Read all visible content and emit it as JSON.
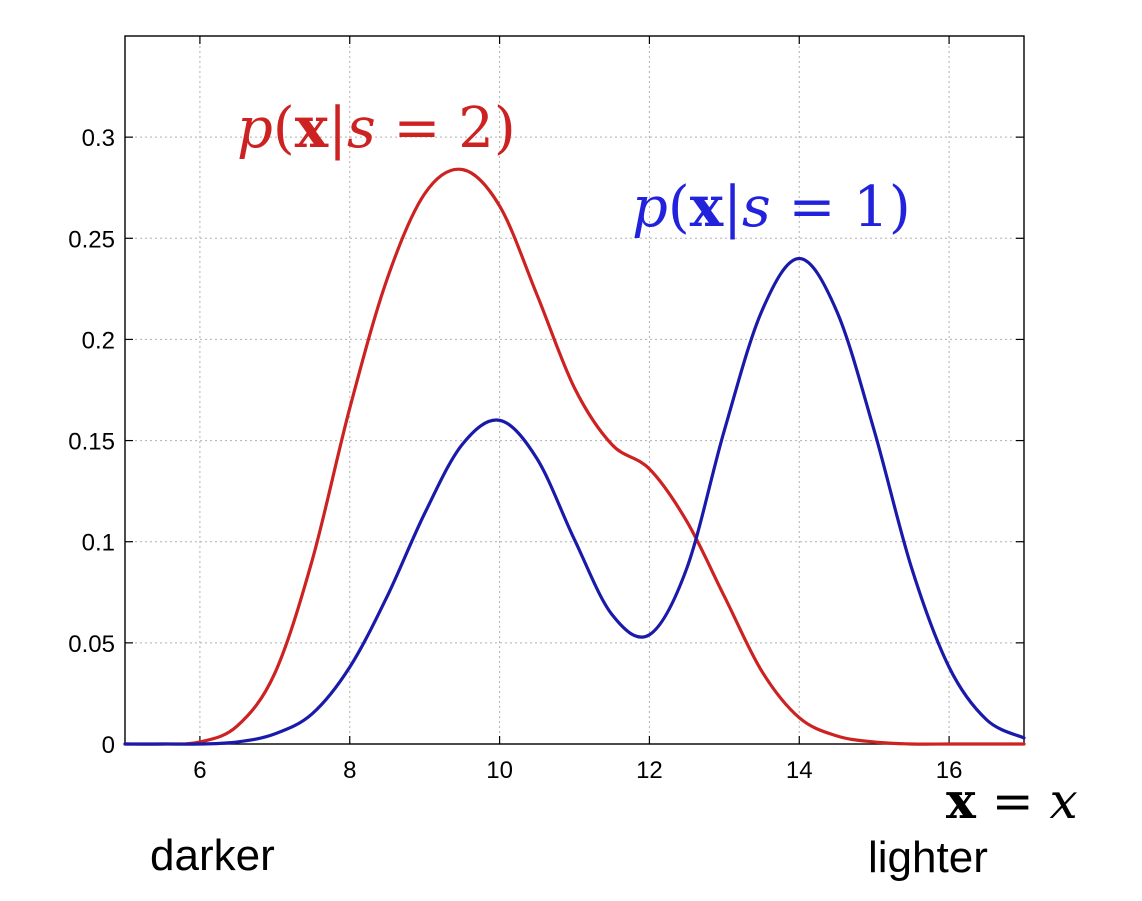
{
  "chart_data": {
    "type": "line",
    "xlim": [
      5,
      17
    ],
    "ylim": [
      0,
      0.35
    ],
    "grid": true,
    "x_ticks": [
      6,
      8,
      10,
      12,
      14,
      16
    ],
    "y_ticks": [
      0,
      0.05,
      0.1,
      0.15,
      0.2,
      0.25,
      0.3
    ],
    "x_tick_labels": [
      "6",
      "8",
      "10",
      "12",
      "14",
      "16"
    ],
    "y_tick_labels": [
      "0",
      "0.05",
      "0.1",
      "0.15",
      "0.2",
      "0.25",
      "0.3"
    ],
    "xlabel": "x = x",
    "xlabel_parts": {
      "bold": "x",
      "eq": " = ",
      "italic": "x"
    },
    "left_annotation": "darker",
    "right_annotation": "lighter",
    "series": [
      {
        "name": "p(x|s = 2)",
        "label_parts": {
          "p": "p",
          "open": "(",
          "x": "x",
          "bar": "|",
          "s": "s",
          "eq": " = 2)"
        },
        "color": "#cc2222",
        "x": [
          5.0,
          5.5,
          6.0,
          6.5,
          7.0,
          7.5,
          8.0,
          8.5,
          9.0,
          9.5,
          10.0,
          10.5,
          11.0,
          11.5,
          12.0,
          12.5,
          13.0,
          13.5,
          14.0,
          14.5,
          15.0,
          15.5,
          16.0,
          16.5,
          17.0
        ],
        "y": [
          0.0,
          0.0,
          0.001,
          0.009,
          0.035,
          0.091,
          0.166,
          0.23,
          0.272,
          0.284,
          0.266,
          0.222,
          0.176,
          0.148,
          0.136,
          0.11,
          0.073,
          0.036,
          0.013,
          0.004,
          0.001,
          0.0,
          0.0,
          0.0,
          0.0
        ]
      },
      {
        "name": "p(x|s = 1)",
        "label_parts": {
          "p": "p",
          "open": "(",
          "x": "x",
          "bar": "|",
          "s": "s",
          "eq": " = 1)"
        },
        "color": "#1a1aaa",
        "x": [
          5.0,
          5.5,
          6.0,
          6.5,
          7.0,
          7.5,
          8.0,
          8.5,
          9.0,
          9.5,
          10.0,
          10.5,
          11.0,
          11.5,
          12.0,
          12.5,
          13.0,
          13.5,
          14.0,
          14.5,
          15.0,
          15.5,
          16.0,
          16.5,
          17.0
        ],
        "y": [
          0.0,
          0.0,
          0.0,
          0.001,
          0.005,
          0.015,
          0.038,
          0.073,
          0.114,
          0.148,
          0.16,
          0.141,
          0.101,
          0.064,
          0.054,
          0.087,
          0.155,
          0.214,
          0.24,
          0.214,
          0.155,
          0.087,
          0.038,
          0.012,
          0.003
        ]
      }
    ]
  }
}
